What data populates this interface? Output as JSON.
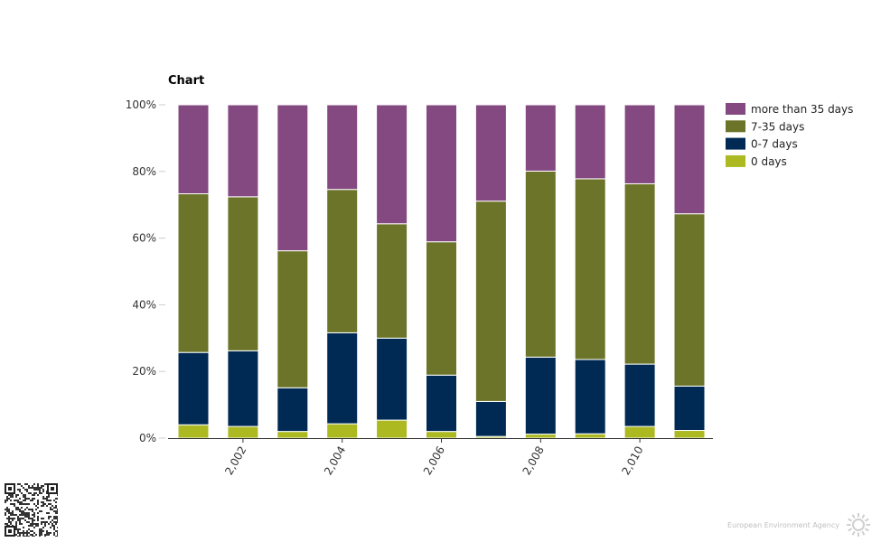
{
  "chart_data": {
    "type": "bar",
    "stacked": true,
    "percent": true,
    "title": "Chart",
    "xlabel": "",
    "ylabel": "",
    "ylim": [
      0,
      100
    ],
    "y_ticks": [
      "0%",
      "20%",
      "40%",
      "60%",
      "80%",
      "100%"
    ],
    "x_tick_labels": [
      "2,002",
      "2,004",
      "2,006",
      "2,008",
      "2,010"
    ],
    "x_tick_positions": [
      2002,
      2004,
      2006,
      2008,
      2010
    ],
    "x_values": [
      2001,
      2002,
      2003,
      2004,
      2005,
      2006,
      2007,
      2008,
      2009,
      2010,
      2011
    ],
    "legend_position": "top-right",
    "series": [
      {
        "name": "0 days",
        "color": "#acb921",
        "values": [
          4.0,
          3.5,
          2.0,
          4.3,
          5.4,
          2.0,
          0.5,
          1.2,
          1.3,
          3.5,
          2.3
        ]
      },
      {
        "name": "0-7 days",
        "color": "#002a54",
        "values": [
          21.7,
          22.7,
          13.1,
          27.3,
          24.6,
          16.9,
          10.5,
          23.1,
          22.3,
          18.7,
          13.3
        ]
      },
      {
        "name": "7-35 days",
        "color": "#6b7428",
        "values": [
          47.6,
          46.2,
          41.1,
          43.0,
          34.3,
          40.0,
          60.1,
          55.8,
          54.2,
          54.1,
          51.7
        ]
      },
      {
        "name": "more than 35 days",
        "color": "#844981",
        "values": [
          26.7,
          27.6,
          43.8,
          25.4,
          35.7,
          41.1,
          28.9,
          19.9,
          22.2,
          23.7,
          32.7
        ]
      }
    ],
    "legend_order": [
      "more than 35 days",
      "7-35 days",
      "0-7 days",
      "0 days"
    ]
  },
  "footer": {
    "publisher": "European Environment Agency"
  }
}
